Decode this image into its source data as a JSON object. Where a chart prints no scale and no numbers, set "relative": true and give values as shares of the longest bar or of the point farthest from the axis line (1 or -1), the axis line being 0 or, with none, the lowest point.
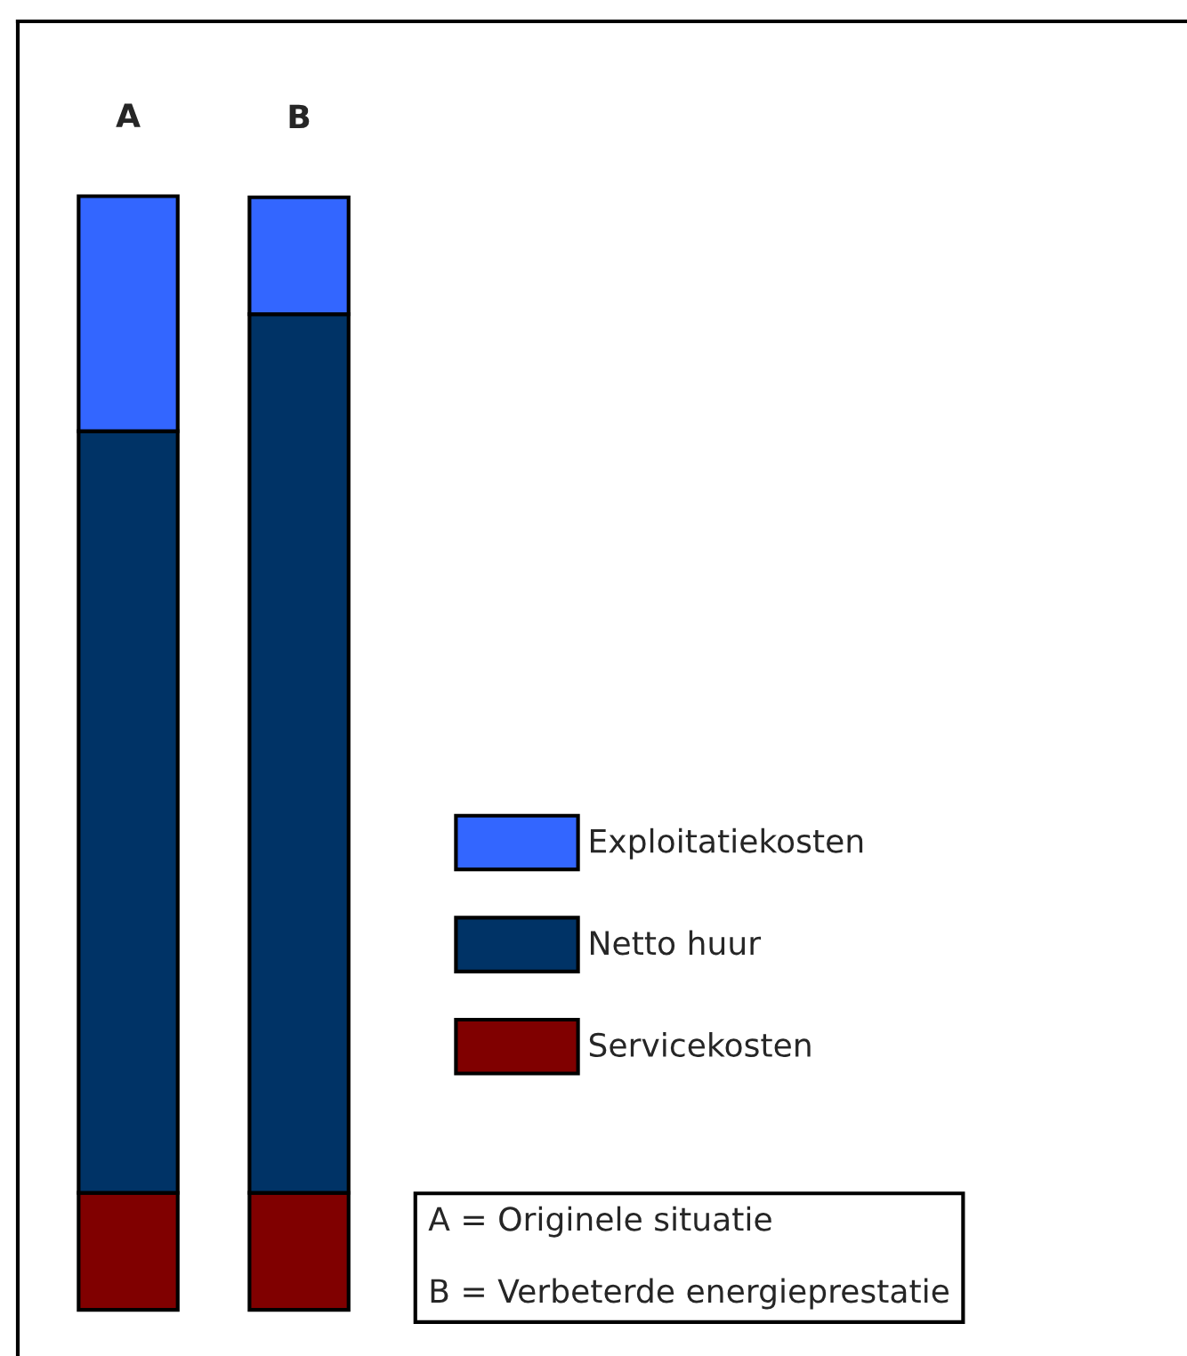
{
  "chart_data": {
    "type": "bar",
    "stacked": true,
    "relative": true,
    "categories": [
      "A",
      "B"
    ],
    "series": [
      {
        "name": "Servicekosten",
        "color": "#800000",
        "values": [
          0.105,
          0.105
        ]
      },
      {
        "name": "Netto huur",
        "color": "#003366",
        "values": [
          0.684,
          0.789
        ]
      },
      {
        "name": "Exploitatiekosten",
        "color": "#3366ff",
        "values": [
          0.211,
          0.105
        ]
      }
    ],
    "legend": "bottom right",
    "annotations": [
      "A = Originele situatie",
      "B = Verbeterde energieprestatie"
    ]
  }
}
